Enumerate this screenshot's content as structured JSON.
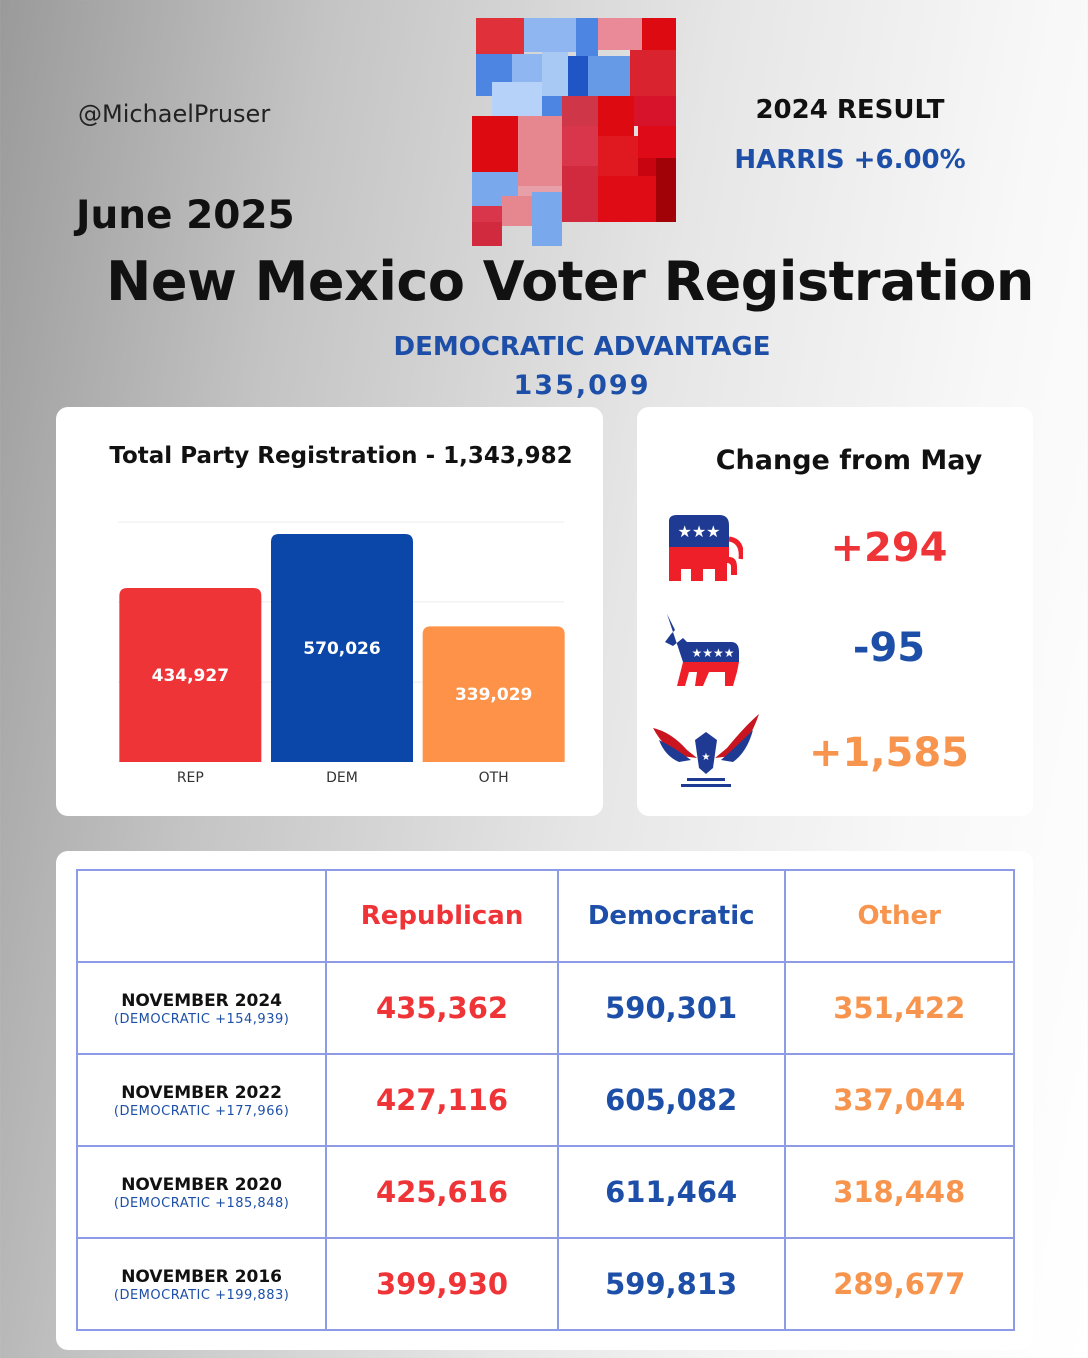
{
  "handle": "@MichaelPruser",
  "date": "June 2025",
  "result": {
    "title": "2024 RESULT",
    "value": "HARRIS +6.00%"
  },
  "main_title": "New Mexico Voter Registration",
  "advantage": {
    "label": "DEMOCRATIC ADVANTAGE",
    "value": "135,099"
  },
  "colors": {
    "republican": "#ef3438",
    "democratic": "#0a47a8",
    "other": "#fd9248",
    "text_blue": "#1d4fa8"
  },
  "chart_data": {
    "type": "bar",
    "title": "Total Party Registration - 1,343,982",
    "categories": [
      "REP",
      "DEM",
      "OTH"
    ],
    "values": [
      434927,
      570026,
      339029
    ],
    "value_labels": [
      "434,927",
      "570,026",
      "339,029"
    ],
    "colors": [
      "#ef3438",
      "#0a47a8",
      "#fd9248"
    ],
    "ylim": [
      0,
      600000
    ],
    "grid": true
  },
  "change": {
    "title": "Change from May",
    "items": [
      {
        "icon": "republican-elephant-icon",
        "value": "+294",
        "color": "#ef3438"
      },
      {
        "icon": "democratic-donkey-icon",
        "value": "-95",
        "color": "#1d4fa8"
      },
      {
        "icon": "eagle-icon",
        "value": "+1,585",
        "color": "#f7944d"
      }
    ]
  },
  "table": {
    "headers": [
      "",
      "Republican",
      "Democratic",
      "Other"
    ],
    "rows": [
      {
        "label": "NOVEMBER 2024",
        "sub": "(DEMOCRATIC +154,939)",
        "rep": "435,362",
        "dem": "590,301",
        "oth": "351,422"
      },
      {
        "label": "NOVEMBER 2022",
        "sub": "(DEMOCRATIC +177,966)",
        "rep": "427,116",
        "dem": "605,082",
        "oth": "337,044"
      },
      {
        "label": "NOVEMBER 2020",
        "sub": "(DEMOCRATIC +185,848)",
        "rep": "425,616",
        "dem": "611,464",
        "oth": "318,448"
      },
      {
        "label": "NOVEMBER 2016",
        "sub": "(DEMOCRATIC +199,883)",
        "rep": "399,930",
        "dem": "599,813",
        "oth": "289,677"
      }
    ]
  }
}
